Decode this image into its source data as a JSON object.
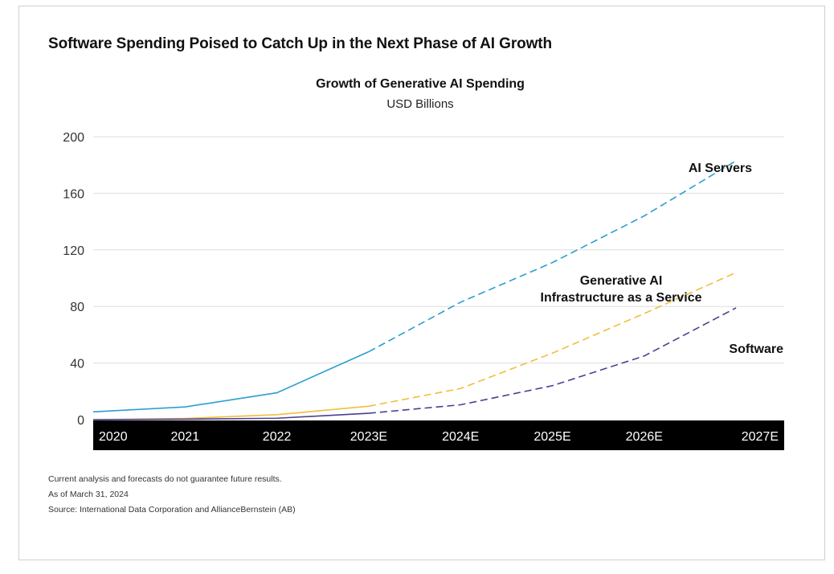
{
  "page": {
    "title": "Software Spending Poised to Catch Up in the Next Phase of AI Growth"
  },
  "chart_data": {
    "type": "line",
    "title": "Growth of Generative AI Spending",
    "subtitle": "USD Billions",
    "xlabel": "",
    "ylabel": "",
    "ylim": [
      0,
      200
    ],
    "yticks": [
      "0",
      "40",
      "80",
      "120",
      "160",
      "200"
    ],
    "categories": [
      "2020",
      "2021",
      "2022",
      "2023E",
      "2024E",
      "2025E",
      "2026E",
      "2027E"
    ],
    "grid": true,
    "forecast_from": "2023E",
    "series": [
      {
        "name": "AI Servers",
        "color": "#2a9fd0",
        "values": [
          5.5,
          9,
          19,
          48,
          83,
          111,
          144,
          183
        ]
      },
      {
        "name": "Generative AI Infrastructure as a Service",
        "color": "#f2bd3c",
        "values": [
          0,
          0.8,
          3.5,
          9.5,
          22,
          47,
          75,
          104
        ]
      },
      {
        "name": "Software",
        "color": "#4b3f93",
        "values": [
          0,
          0.3,
          1,
          4.5,
          10.5,
          24,
          45,
          79
        ]
      }
    ],
    "series_labels": [
      {
        "lines": [
          "AI Servers"
        ]
      },
      {
        "lines": [
          "Generative AI",
          "Infrastructure as a Service"
        ]
      },
      {
        "lines": [
          "Software"
        ]
      }
    ]
  },
  "notes": [
    "Current analysis and forecasts do not guarantee future results.",
    "As of March 31, 2024",
    "Source: International Data Corporation and AllianceBernstein (AB)"
  ]
}
